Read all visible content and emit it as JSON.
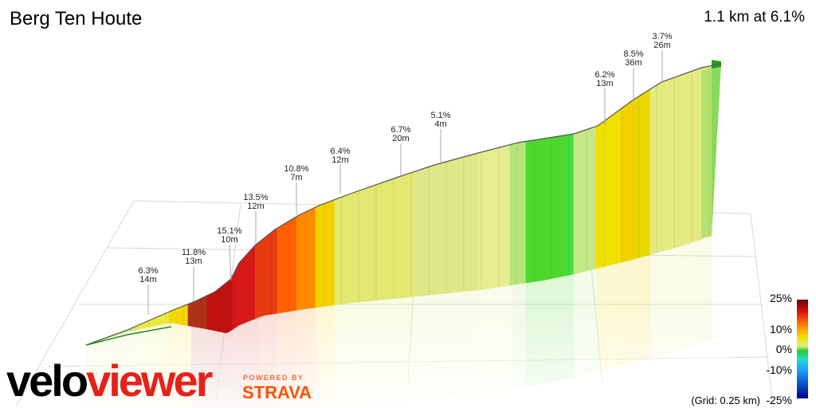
{
  "header": {
    "title": "Berg Ten Houte",
    "summary": "1.1 km at 6.1%"
  },
  "scale": {
    "labels": [
      "25%",
      "10%",
      "0%",
      "-10%",
      "-25%"
    ],
    "grid_note": "(Grid: 0.25 km)"
  },
  "branding": {
    "velo": "velo",
    "viewer": "viewer",
    "powered_by": "POWERED BY",
    "strava": "STRAVA"
  },
  "chart_data": {
    "type": "area",
    "title": "Berg Ten Houte",
    "summary": "1.1 km at 6.1%",
    "total_distance_km": 1.1,
    "average_gradient_pct": 6.1,
    "color_scale_pct": [
      -25,
      -10,
      0,
      10,
      25
    ],
    "segment_annotations": [
      {
        "gradient": "6.3%",
        "length": "14m"
      },
      {
        "gradient": "11.8%",
        "length": "13m"
      },
      {
        "gradient": "15.1%",
        "length": "10m"
      },
      {
        "gradient": "13.5%",
        "length": "12m"
      },
      {
        "gradient": "10.8%",
        "length": "7m"
      },
      {
        "gradient": "6.4%",
        "length": "12m"
      },
      {
        "gradient": "6.7%",
        "length": "20m"
      },
      {
        "gradient": "5.1%",
        "length": "4m"
      },
      {
        "gradient": "6.2%",
        "length": "13m"
      },
      {
        "gradient": "8.5%",
        "length": "36m"
      },
      {
        "gradient": "3.7%",
        "length": "26m"
      }
    ]
  }
}
